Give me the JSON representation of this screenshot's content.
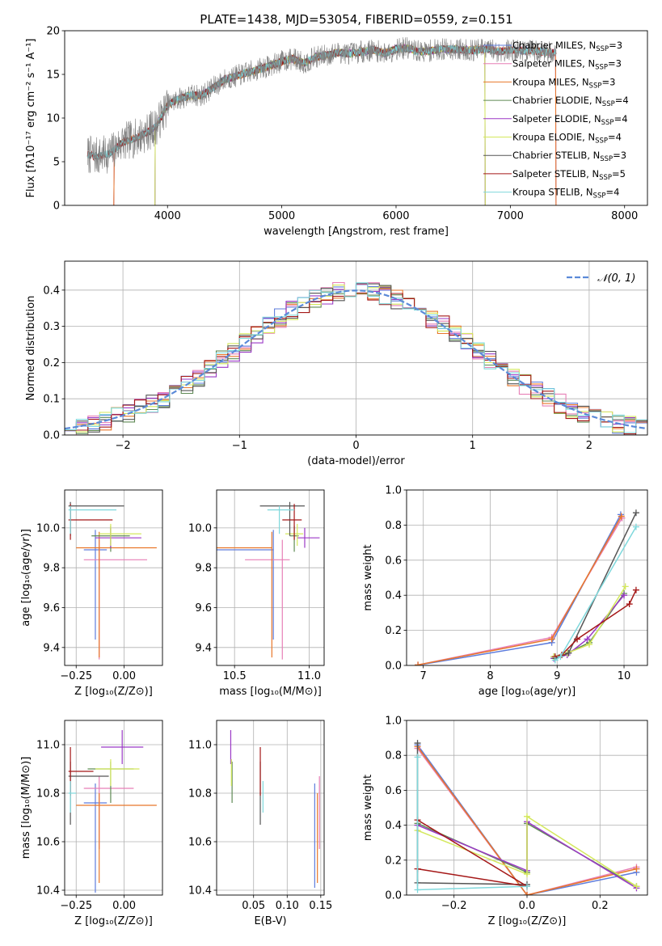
{
  "title": "PLATE=1438, MJD=53054, FIBERID=0559, z=0.151",
  "colors": {
    "Chabrier MILES": "#5e7cdc",
    "Salpeter MILES": "#e77fb6",
    "Kroupa MILES": "#e8772a",
    "Chabrier ELODIE": "#5f8a55",
    "Salpeter ELODIE": "#9b39c6",
    "Kroupa ELODIE": "#d4e85c",
    "Chabrier STELIB": "#555555",
    "Salpeter STELIB": "#a51818",
    "Kroupa STELIB": "#7fd8dc",
    "data": "#808080",
    "normal": "#5b8ad8"
  },
  "chart_data": [
    {
      "id": "spectrum",
      "type": "line",
      "xlabel": "wavelength [Angstrom, rest frame]",
      "ylabel": "Flux [fλ10⁻¹⁷ erg cm⁻² s⁻¹ A⁻¹]",
      "xlim": [
        3100,
        8200
      ],
      "ylim": [
        0,
        20
      ],
      "xticks": [
        "4000",
        "5000",
        "6000",
        "7000",
        "8000"
      ],
      "yticks": [
        "0",
        "5",
        "10",
        "15",
        "20"
      ],
      "legend_position": "top-right",
      "envelope": {
        "x": [
          3300,
          3400,
          3500,
          3600,
          3700,
          3800,
          3900,
          4000,
          4100,
          4200,
          4300,
          4400,
          4500,
          4600,
          4700,
          4800,
          4900,
          5000,
          5100,
          5200,
          5300,
          5400,
          5500,
          5600,
          5700,
          5800,
          5900,
          6000,
          6100,
          6200,
          6300,
          6400,
          6500,
          6600,
          6700,
          6800,
          6900,
          7000,
          7100,
          7200,
          7300,
          7400
        ],
        "y": [
          5.8,
          5.6,
          6.0,
          7.2,
          7.6,
          8.2,
          9.0,
          11.5,
          12.2,
          12.6,
          12.6,
          13.5,
          14.4,
          14.8,
          15.2,
          15.6,
          16.0,
          16.5,
          16.8,
          16.3,
          17.0,
          17.2,
          17.5,
          17.4,
          17.6,
          17.8,
          17.4,
          17.9,
          18.0,
          17.6,
          17.7,
          17.9,
          17.9,
          17.8,
          17.8,
          17.9,
          17.6,
          17.8,
          17.7,
          17.7,
          17.6,
          17.5
        ]
      },
      "series": [
        {
          "name": "Chabrier MILES, N",
          "nssp": "=3",
          "cut": [
            3530,
            7400
          ]
        },
        {
          "name": "Salpeter MILES, N",
          "nssp": "=3",
          "cut": [
            3530,
            7400
          ]
        },
        {
          "name": "Kroupa MILES, N",
          "nssp": "=3",
          "cut": [
            3530,
            7400
          ]
        },
        {
          "name": "Chabrier ELODIE, N",
          "nssp": "=4",
          "cut": [
            3890,
            6780
          ]
        },
        {
          "name": "Salpeter ELODIE, N",
          "nssp": "=4",
          "cut": [
            3890,
            6780
          ]
        },
        {
          "name": "Kroupa ELODIE, N",
          "nssp": "=4",
          "cut": [
            3890,
            6780
          ]
        },
        {
          "name": "Chabrier STELIB, N",
          "nssp": "=3",
          "cut": [
            3300,
            8200
          ]
        },
        {
          "name": "Salpeter STELIB, N",
          "nssp": "=5",
          "cut": [
            3300,
            8200
          ]
        },
        {
          "name": "Kroupa STELIB, N",
          "nssp": "=4",
          "cut": [
            3300,
            8200
          ]
        }
      ],
      "nssp_sub": "SSP"
    },
    {
      "id": "residual_hist",
      "type": "line",
      "xlabel": "(data-model)/error",
      "ylabel": "Normed distribution",
      "xlim": [
        -2.5,
        2.5
      ],
      "ylim": [
        0,
        0.48
      ],
      "xticks": [
        "−2",
        "−1",
        "0",
        "1",
        "2"
      ],
      "yticks": [
        "0.0",
        "0.1",
        "0.2",
        "0.3",
        "0.4"
      ],
      "grid": true,
      "legend": "𝒩(0, 1)",
      "legend_position": "top-right",
      "bin_width": 0.1
    },
    {
      "id": "age_vs_Z",
      "type": "scatter",
      "xlabel": "Z [log₁₀(Z/Z⊙)]",
      "ylabel": "age  [log₁₀(age/yr)]",
      "xlim": [
        -0.31,
        0.2
      ],
      "ylim": [
        9.31,
        10.19
      ],
      "xticks": [
        "−0.25",
        "0.00"
      ],
      "yticks": [
        "9.4",
        "9.6",
        "9.8",
        "10.0"
      ],
      "grid": true,
      "points": [
        {
          "s": "Chabrier MILES",
          "x": -0.15,
          "y": 9.89,
          "xe": [
            0.06,
            0.06
          ],
          "ye": [
            0.45,
            0.1
          ]
        },
        {
          "s": "Salpeter MILES",
          "x": -0.13,
          "y": 9.84,
          "xe": [
            0.08,
            0.25
          ],
          "ye": [
            0.5,
            0.1
          ]
        },
        {
          "s": "Kroupa MILES",
          "x": -0.13,
          "y": 9.9,
          "xe": [
            0.12,
            0.3
          ],
          "ye": [
            0.55,
            0.08
          ]
        },
        {
          "s": "Chabrier ELODIE",
          "x": -0.07,
          "y": 9.96,
          "xe": [
            0.1,
            0.1
          ],
          "ye": [
            0.08,
            0.05
          ]
        },
        {
          "s": "Salpeter ELODIE",
          "x": -0.07,
          "y": 9.95,
          "xe": [
            0.08,
            0.16
          ],
          "ye": [
            0.05,
            0.05
          ]
        },
        {
          "s": "Kroupa ELODIE",
          "x": -0.07,
          "y": 9.97,
          "xe": [
            0.06,
            0.16
          ],
          "ye": [
            0.06,
            0.05
          ]
        },
        {
          "s": "Chabrier STELIB",
          "x": -0.28,
          "y": 10.11,
          "xe": [
            0.01,
            0.28
          ],
          "ye": [
            0.15,
            0.02
          ]
        },
        {
          "s": "Salpeter STELIB",
          "x": -0.28,
          "y": 10.04,
          "xe": [
            0.01,
            0.22
          ],
          "ye": [
            0.1,
            0.08
          ]
        },
        {
          "s": "Kroupa STELIB",
          "x": -0.28,
          "y": 10.09,
          "xe": [
            0.01,
            0.24
          ],
          "ye": [
            0.12,
            0.02
          ]
        }
      ]
    },
    {
      "id": "age_vs_mass",
      "type": "scatter",
      "xlabel": "mass [log₁₀(M/M⊙)]",
      "ylabel": "",
      "xlim": [
        10.38,
        11.1
      ],
      "ylim": [
        9.31,
        10.19
      ],
      "xticks": [
        "10.5",
        "11.0"
      ],
      "yticks": [
        "9.4",
        "9.6",
        "9.8",
        "10.0"
      ],
      "grid": true,
      "points": [
        {
          "s": "Chabrier MILES",
          "x": 10.76,
          "y": 9.89,
          "xe": [
            0.4,
            0.0
          ],
          "ye": [
            0.45,
            0.1
          ]
        },
        {
          "s": "Salpeter MILES",
          "x": 10.82,
          "y": 9.84,
          "xe": [
            0.25,
            0.05
          ],
          "ye": [
            0.5,
            0.1
          ]
        },
        {
          "s": "Kroupa MILES",
          "x": 10.75,
          "y": 9.9,
          "xe": [
            0.37,
            0.0
          ],
          "ye": [
            0.55,
            0.08
          ]
        },
        {
          "s": "Chabrier ELODIE",
          "x": 10.9,
          "y": 9.96,
          "xe": [
            0.03,
            0.03
          ],
          "ye": [
            0.08,
            0.05
          ]
        },
        {
          "s": "Salpeter ELODIE",
          "x": 10.97,
          "y": 9.95,
          "xe": [
            0.05,
            0.1
          ],
          "ye": [
            0.05,
            0.05
          ]
        },
        {
          "s": "Kroupa ELODIE",
          "x": 10.92,
          "y": 9.97,
          "xe": [
            0.08,
            0.04
          ],
          "ye": [
            0.06,
            0.05
          ]
        },
        {
          "s": "Chabrier STELIB",
          "x": 10.87,
          "y": 10.11,
          "xe": [
            0.2,
            0.1
          ],
          "ye": [
            0.15,
            0.02
          ]
        },
        {
          "s": "Salpeter STELIB",
          "x": 10.9,
          "y": 10.04,
          "xe": [
            0.08,
            0.05
          ],
          "ye": [
            0.1,
            0.08
          ]
        },
        {
          "s": "Kroupa STELIB",
          "x": 10.8,
          "y": 10.09,
          "xe": [
            0.08,
            0.1
          ],
          "ye": [
            0.12,
            0.02
          ]
        }
      ]
    },
    {
      "id": "weight_vs_age",
      "type": "line",
      "xlabel": "age  [log₁₀(age/yr)]",
      "ylabel": "mass weight",
      "xlim": [
        6.75,
        10.35
      ],
      "ylim": [
        0,
        1
      ],
      "xticks": [
        "7",
        "8",
        "9",
        "10"
      ],
      "yticks": [
        "0.0",
        "0.2",
        "0.4",
        "0.6",
        "0.8",
        "1.0"
      ],
      "grid": true,
      "series": [
        {
          "s": "Chabrier MILES",
          "x": [
            6.92,
            8.92,
            9.95
          ],
          "y": [
            0.002,
            0.13,
            0.86
          ]
        },
        {
          "s": "Salpeter MILES",
          "x": [
            6.92,
            8.92,
            9.97
          ],
          "y": [
            0.003,
            0.16,
            0.84
          ]
        },
        {
          "s": "Kroupa MILES",
          "x": [
            6.92,
            8.92,
            9.96
          ],
          "y": [
            0.003,
            0.15,
            0.85
          ]
        },
        {
          "s": "Chabrier ELODIE",
          "x": [
            8.95,
            9.15,
            9.48,
            10.0
          ],
          "y": [
            0.05,
            0.07,
            0.13,
            0.41
          ]
        },
        {
          "s": "Salpeter ELODIE",
          "x": [
            8.95,
            9.15,
            9.45,
            10.0
          ],
          "y": [
            0.04,
            0.06,
            0.15,
            0.4
          ]
        },
        {
          "s": "Kroupa ELODIE",
          "x": [
            8.95,
            9.15,
            9.48,
            10.02
          ],
          "y": [
            0.05,
            0.07,
            0.12,
            0.45
          ]
        },
        {
          "s": "Chabrier STELIB",
          "x": [
            8.97,
            9.17,
            10.18
          ],
          "y": [
            0.04,
            0.07,
            0.87
          ]
        },
        {
          "s": "Salpeter STELIB",
          "x": [
            8.97,
            9.07,
            9.3,
            10.08,
            10.18
          ],
          "y": [
            0.05,
            0.06,
            0.15,
            0.35,
            0.43
          ]
        },
        {
          "s": "Kroupa STELIB",
          "x": [
            8.97,
            9.05,
            10.18
          ],
          "y": [
            0.03,
            0.05,
            0.79
          ]
        }
      ]
    },
    {
      "id": "mass_vs_Z",
      "type": "scatter",
      "xlabel": "Z [log₁₀(Z/Z⊙)]",
      "ylabel": "mass [log₁₀(M/M⊙)]",
      "xlim": [
        -0.31,
        0.2
      ],
      "ylim": [
        10.38,
        11.1
      ],
      "xticks": [
        "−0.25",
        "0.00"
      ],
      "yticks": [
        "10.4",
        "10.6",
        "10.8",
        "11.0"
      ],
      "grid": true,
      "points": [
        {
          "s": "Chabrier MILES",
          "x": -0.15,
          "y": 10.76,
          "xe": [
            0.06,
            0.06
          ],
          "ye": [
            0.37,
            0.08
          ]
        },
        {
          "s": "Salpeter MILES",
          "x": -0.13,
          "y": 10.82,
          "xe": [
            0.08,
            0.18
          ],
          "ye": [
            0.25,
            0.05
          ]
        },
        {
          "s": "Kroupa MILES",
          "x": -0.13,
          "y": 10.75,
          "xe": [
            0.12,
            0.3
          ],
          "ye": [
            0.32,
            0.05
          ]
        },
        {
          "s": "Chabrier ELODIE",
          "x": -0.07,
          "y": 10.9,
          "xe": [
            0.12,
            0.12
          ],
          "ye": [
            0.14,
            0.03
          ]
        },
        {
          "s": "Salpeter ELODIE",
          "x": -0.01,
          "y": 10.99,
          "xe": [
            0.11,
            0.11
          ],
          "ye": [
            0.07,
            0.07
          ]
        },
        {
          "s": "Kroupa ELODIE",
          "x": -0.07,
          "y": 10.9,
          "xe": [
            0.08,
            0.15
          ],
          "ye": [
            0.07,
            0.04
          ]
        },
        {
          "s": "Chabrier STELIB",
          "x": -0.28,
          "y": 10.87,
          "xe": [
            0.01,
            0.2
          ],
          "ye": [
            0.2,
            0.06
          ]
        },
        {
          "s": "Salpeter STELIB",
          "x": -0.28,
          "y": 10.89,
          "xe": [
            0.01,
            0.12
          ],
          "ye": [
            0.1,
            0.1
          ]
        },
        {
          "s": "Kroupa STELIB",
          "x": -0.28,
          "y": 10.8,
          "xe": [
            0.01,
            0.03
          ],
          "ye": [
            0.08,
            0.05
          ]
        }
      ]
    },
    {
      "id": "mass_vs_ebv",
      "type": "scatter",
      "xlabel": "E(B-V)",
      "ylabel": "",
      "xlim": [
        -0.005,
        0.155
      ],
      "ylim": [
        10.38,
        11.1
      ],
      "xticks": [
        "0.05",
        "0.10",
        "0.15"
      ],
      "yticks": [
        "10.4",
        "10.6",
        "10.8",
        "11.0"
      ],
      "grid": true,
      "points": [
        {
          "s": "Chabrier MILES",
          "x": 0.141,
          "y": 10.76,
          "xe": [
            0,
            0
          ],
          "ye": [
            0.35,
            0.08
          ]
        },
        {
          "s": "Salpeter MILES",
          "x": 0.148,
          "y": 10.82,
          "xe": [
            0,
            0
          ],
          "ye": [
            0.25,
            0.05
          ]
        },
        {
          "s": "Kroupa MILES",
          "x": 0.145,
          "y": 10.75,
          "xe": [
            0,
            0
          ],
          "ye": [
            0.32,
            0.05
          ]
        },
        {
          "s": "Chabrier ELODIE",
          "x": 0.018,
          "y": 10.9,
          "xe": [
            0,
            0
          ],
          "ye": [
            0.14,
            0.03
          ]
        },
        {
          "s": "Salpeter ELODIE",
          "x": 0.016,
          "y": 10.99,
          "xe": [
            0,
            0
          ],
          "ye": [
            0.07,
            0.07
          ]
        },
        {
          "s": "Kroupa ELODIE",
          "x": 0.017,
          "y": 10.9,
          "xe": [
            0,
            0
          ],
          "ye": [
            0.07,
            0.04
          ]
        },
        {
          "s": "Chabrier STELIB",
          "x": 0.06,
          "y": 10.87,
          "xe": [
            0,
            0
          ],
          "ye": [
            0.2,
            0.06
          ]
        },
        {
          "s": "Salpeter STELIB",
          "x": 0.06,
          "y": 10.89,
          "xe": [
            0,
            0
          ],
          "ye": [
            0.1,
            0.1
          ]
        },
        {
          "s": "Kroupa STELIB",
          "x": 0.064,
          "y": 10.8,
          "xe": [
            0,
            0
          ],
          "ye": [
            0.08,
            0.05
          ]
        }
      ]
    },
    {
      "id": "weight_vs_Z",
      "type": "line",
      "xlabel": "Z [log₁₀(Z/Z⊙)]",
      "ylabel": "mass weight",
      "xlim": [
        -0.33,
        0.33
      ],
      "ylim": [
        0,
        1
      ],
      "xticks": [
        "−0.2",
        "0.0",
        "0.2"
      ],
      "yticks": [
        "0.0",
        "0.2",
        "0.4",
        "0.6",
        "0.8",
        "1.0"
      ],
      "grid": true,
      "series": [
        {
          "s": "Chabrier MILES",
          "x": [
            -0.3,
            0.0,
            0.3
          ],
          "y": [
            0.86,
            0.0,
            0.13
          ]
        },
        {
          "s": "Salpeter MILES",
          "x": [
            -0.3,
            0.0,
            0.3
          ],
          "y": [
            0.84,
            0.0,
            0.16
          ]
        },
        {
          "s": "Kroupa MILES",
          "x": [
            -0.3,
            0.0,
            0.3
          ],
          "y": [
            0.85,
            0.0,
            0.15
          ]
        },
        {
          "s": "Chabrier ELODIE",
          "x": [
            -0.3,
            0.0,
            0.0,
            0.3
          ],
          "y": [
            0.41,
            0.13,
            0.41,
            0.05
          ]
        },
        {
          "s": "Salpeter ELODIE",
          "x": [
            -0.3,
            0.0,
            0.0,
            0.3
          ],
          "y": [
            0.4,
            0.14,
            0.42,
            0.04
          ]
        },
        {
          "s": "Kroupa ELODIE",
          "x": [
            -0.3,
            0.0,
            0.0,
            0.3
          ],
          "y": [
            0.37,
            0.12,
            0.45,
            0.05
          ]
        },
        {
          "s": "Chabrier STELIB",
          "x": [
            -0.3,
            -0.3,
            0.0
          ],
          "y": [
            0.87,
            0.07,
            0.06
          ]
        },
        {
          "s": "Salpeter STELIB",
          "x": [
            -0.3,
            0.0,
            -0.3
          ],
          "y": [
            0.43,
            0.05,
            0.15
          ]
        },
        {
          "s": "Kroupa STELIB",
          "x": [
            -0.3,
            -0.3,
            0.0
          ],
          "y": [
            0.79,
            0.03,
            0.05
          ]
        }
      ]
    }
  ]
}
